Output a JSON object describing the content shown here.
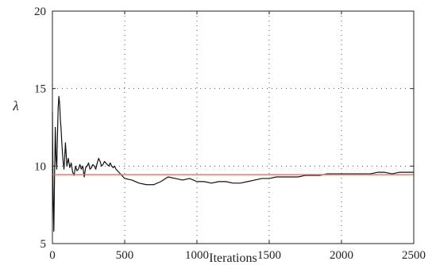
{
  "chart_data": {
    "type": "line",
    "title": "",
    "xlabel": "Iterations",
    "ylabel": "λ",
    "xlim": [
      0,
      2500
    ],
    "ylim": [
      5,
      20
    ],
    "grid": true,
    "legend": "none",
    "x_ticks": [
      0,
      500,
      1000,
      1500,
      2000,
      2500
    ],
    "y_ticks": [
      5,
      10,
      15,
      20
    ],
    "colors": {
      "estimate": "#111111",
      "reference": "#e8735a"
    },
    "series": [
      {
        "x": [
          0,
          5,
          10,
          15,
          20,
          25,
          30,
          35,
          40,
          45,
          50,
          55,
          60,
          65,
          70,
          75,
          80,
          85,
          90,
          95,
          100,
          110,
          120,
          130,
          140,
          150,
          160,
          170,
          180,
          190,
          200,
          210,
          220,
          230,
          240,
          250,
          260,
          270,
          280,
          290,
          300,
          310,
          320,
          330,
          340,
          350,
          360,
          370,
          380,
          390,
          400,
          410,
          420,
          430,
          440,
          450,
          460,
          470,
          480,
          490,
          500,
          550,
          600,
          650,
          700,
          750,
          800,
          850,
          900,
          950,
          1000,
          1050,
          1100,
          1150,
          1200,
          1250,
          1300,
          1350,
          1400,
          1450,
          1500,
          1550,
          1600,
          1650,
          1700,
          1750,
          1800,
          1850,
          1900,
          1950,
          2000,
          2050,
          2100,
          2150,
          2200,
          2250,
          2300,
          2350,
          2400,
          2450,
          2500
        ],
        "values": [
          13.5,
          8.0,
          5.8,
          9.5,
          12.5,
          10.5,
          9.8,
          12.0,
          13.8,
          14.5,
          14.0,
          13.0,
          12.4,
          11.5,
          10.8,
          10.2,
          9.8,
          10.5,
          11.5,
          10.8,
          10.0,
          10.5,
          9.9,
          10.2,
          9.6,
          9.4,
          10.0,
          9.7,
          9.8,
          10.1,
          9.8,
          10.0,
          9.3,
          9.9,
          10.0,
          10.2,
          9.8,
          9.9,
          10.1,
          10.0,
          9.8,
          10.2,
          10.5,
          10.3,
          10.0,
          10.1,
          10.3,
          10.2,
          10.1,
          10.0,
          10.2,
          10.0,
          9.9,
          10.0,
          9.8,
          9.7,
          9.6,
          9.5,
          9.4,
          9.3,
          9.2,
          9.1,
          8.9,
          8.8,
          8.8,
          9.0,
          9.3,
          9.2,
          9.1,
          9.2,
          9.0,
          9.0,
          8.9,
          9.0,
          9.0,
          8.9,
          8.9,
          9.0,
          9.1,
          9.2,
          9.2,
          9.3,
          9.3,
          9.3,
          9.3,
          9.4,
          9.4,
          9.4,
          9.5,
          9.5,
          9.5,
          9.5,
          9.5,
          9.5,
          9.5,
          9.6,
          9.6,
          9.5,
          9.6,
          9.6,
          9.6
        ]
      },
      {
        "x": [
          0,
          2500
        ],
        "values": [
          9.45,
          9.45
        ]
      }
    ]
  }
}
